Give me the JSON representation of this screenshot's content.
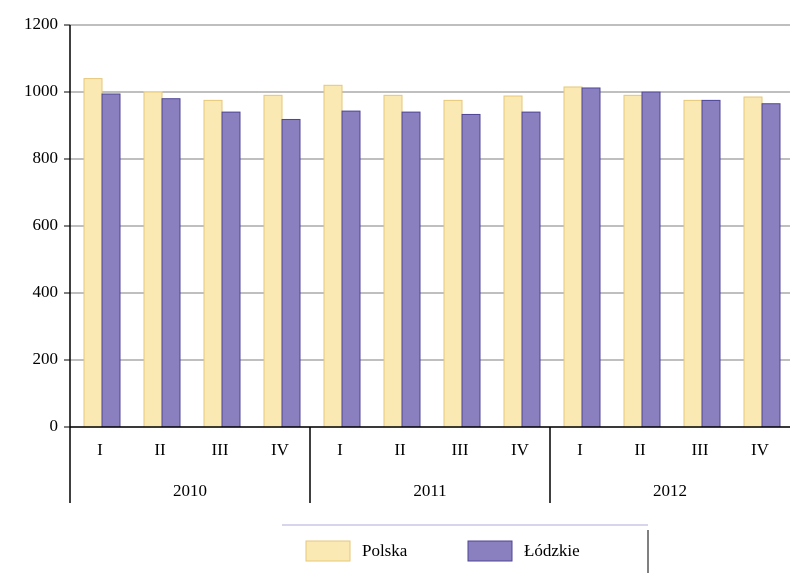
{
  "chart_data": {
    "type": "bar",
    "categories": [
      "I",
      "II",
      "III",
      "IV",
      "I",
      "II",
      "III",
      "IV",
      "I",
      "II",
      "III",
      "IV"
    ],
    "groups": [
      "2010",
      "2011",
      "2012"
    ],
    "series": [
      {
        "name": "Polska",
        "color": "#fbe9b4",
        "values": [
          1040,
          1000,
          975,
          990,
          1020,
          990,
          975,
          988,
          1015,
          990,
          975,
          985
        ]
      },
      {
        "name": "Łódzkie",
        "color": "#8a80bf",
        "values": [
          994,
          980,
          940,
          918,
          943,
          940,
          933,
          940,
          1012,
          1000,
          975,
          965
        ]
      }
    ],
    "ylim": [
      0,
      1200
    ],
    "yticks": [
      0,
      200,
      400,
      600,
      800,
      1000,
      1200
    ],
    "grid": true
  }
}
